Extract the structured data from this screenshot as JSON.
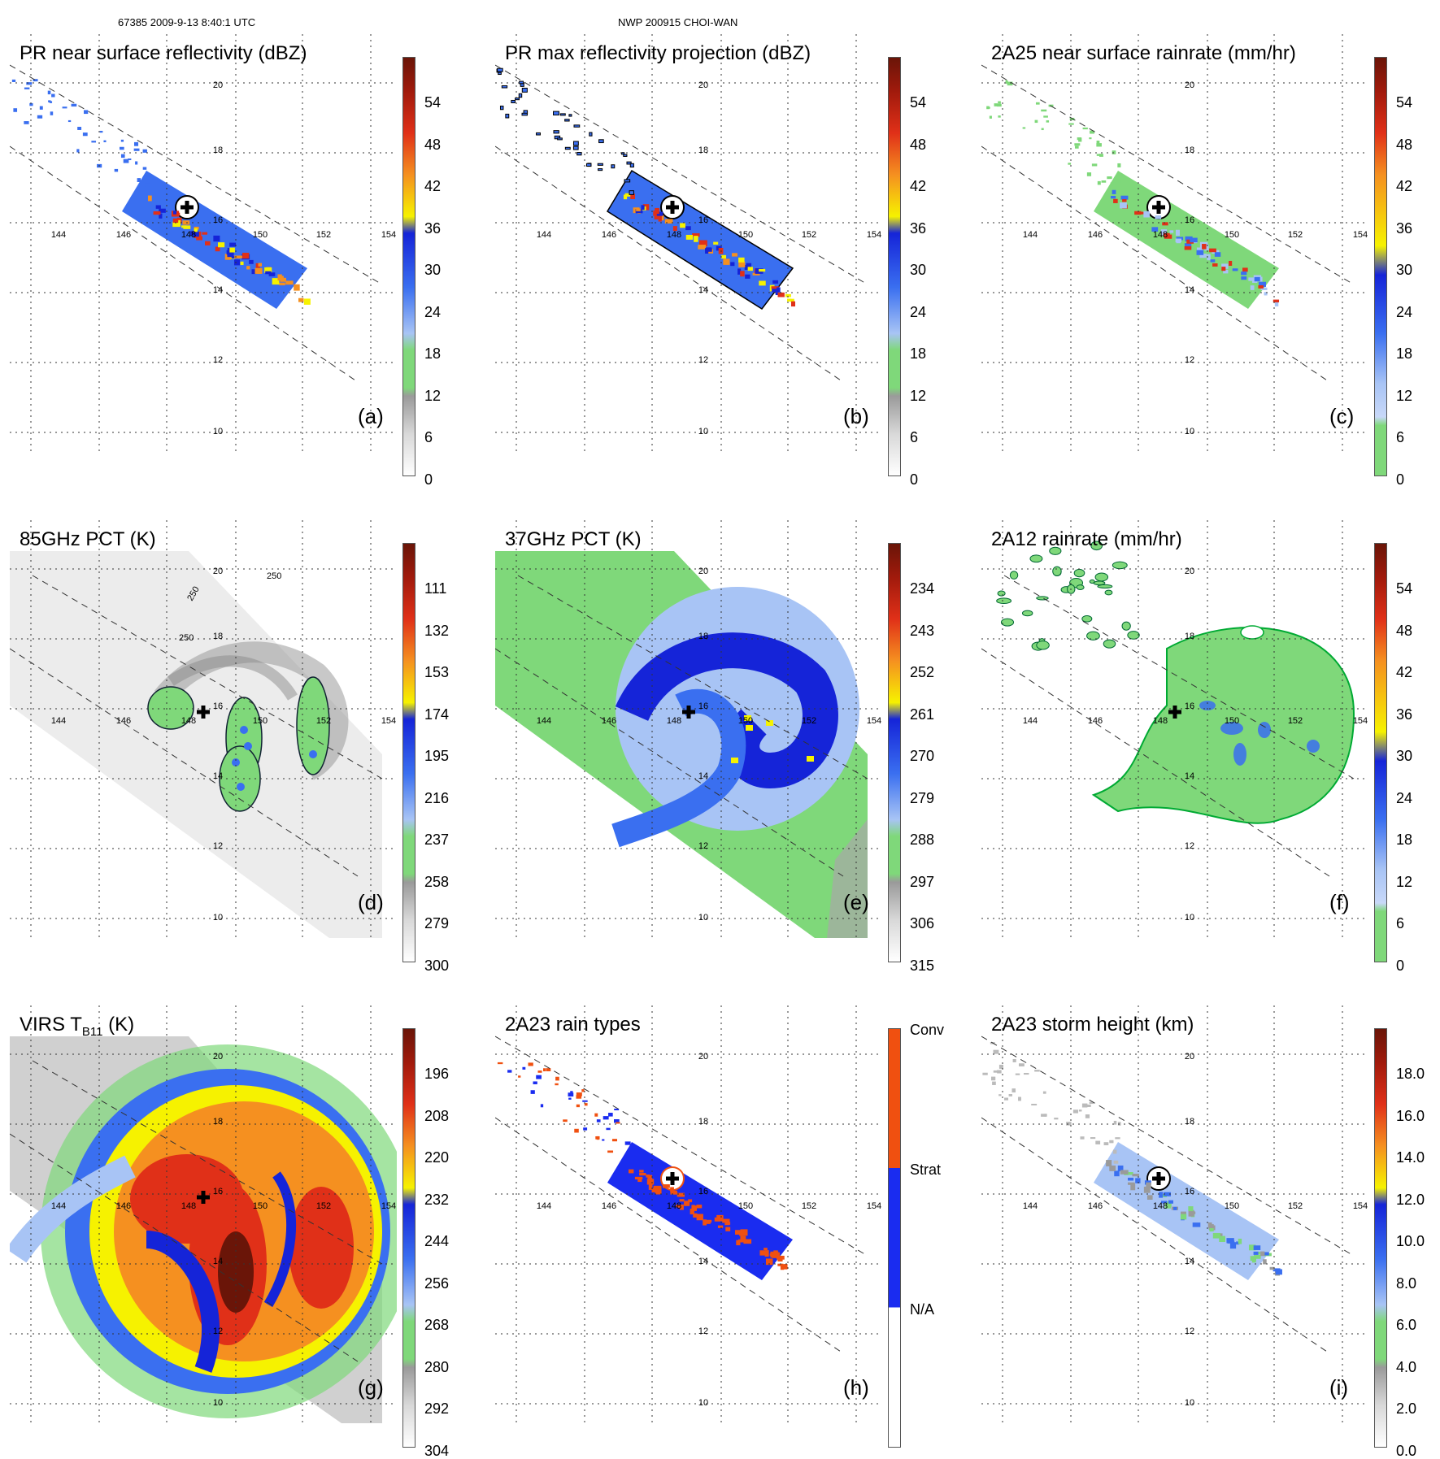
{
  "header": {
    "orbit_info": "67385 2009-9-13 8:40:1 UTC",
    "storm_info": "NWP 200915 CHOI-WAN"
  },
  "colors": {
    "green": "#7fd87a",
    "blue_dark": "#1524d8",
    "blue_mid": "#3a6ff0",
    "blue_light": "#a8c4f5",
    "yellow": "#f6f200",
    "orange": "#f59020",
    "red": "#e03018",
    "dark_red": "#6a1508",
    "gray": "#9a9a9a",
    "strat_blue": "#1a2cf0",
    "conv_orange": "#f05010"
  },
  "grid": {
    "lon_labels": [
      "144",
      "146",
      "148",
      "150",
      "152",
      "154"
    ],
    "lat_labels": [
      "10",
      "12",
      "14",
      "16",
      "18",
      "20"
    ]
  },
  "panels": [
    {
      "id": "a",
      "title": "PR near surface reflectivity (dBZ)",
      "label": "(a)",
      "ticks": [
        "54",
        "48",
        "42",
        "36",
        "30",
        "24",
        "18",
        "12",
        "6",
        "0"
      ],
      "type": "pr_swath"
    },
    {
      "id": "b",
      "title": "PR max reflectivity projection (dBZ)",
      "label": "(b)",
      "ticks": [
        "54",
        "48",
        "42",
        "36",
        "30",
        "24",
        "18",
        "12",
        "6",
        "0"
      ],
      "type": "pr_swath"
    },
    {
      "id": "c",
      "title": "2A25 near surface rainrate (mm/hr)",
      "label": "(c)",
      "ticks": [
        "54",
        "48",
        "42",
        "36",
        "30",
        "24",
        "18",
        "12",
        "6",
        "0"
      ],
      "type": "pr_swath_rain"
    },
    {
      "id": "d",
      "title": "85GHz PCT (K)",
      "label": "(d)",
      "ticks": [
        "111",
        "132",
        "153",
        "174",
        "195",
        "216",
        "237",
        "258",
        "279",
        "300"
      ],
      "type": "tmi_gray",
      "contour_labels": [
        "250",
        "250",
        "250"
      ]
    },
    {
      "id": "e",
      "title": "37GHz PCT (K)",
      "label": "(e)",
      "ticks": [
        "234",
        "243",
        "252",
        "261",
        "270",
        "279",
        "288",
        "297",
        "306",
        "315"
      ],
      "type": "tmi_green"
    },
    {
      "id": "f",
      "title": "2A12 rainrate (mm/hr)",
      "label": "(f)",
      "ticks": [
        "54",
        "48",
        "42",
        "36",
        "30",
        "24",
        "18",
        "12",
        "6",
        "0"
      ],
      "type": "tmi_rain"
    },
    {
      "id": "g",
      "title_main": "VIRS T",
      "title_sub": "B11",
      "title_unit": " (K)",
      "label": "(g)",
      "ticks": [
        "196",
        "208",
        "220",
        "232",
        "244",
        "256",
        "268",
        "280",
        "292",
        "304"
      ],
      "type": "virs"
    },
    {
      "id": "h",
      "title": "2A23 rain types",
      "label": "(h)",
      "ticks3": [
        "Conv",
        "Strat",
        "N/A"
      ],
      "type": "raintype"
    },
    {
      "id": "i",
      "title": "2A23 storm height (km)",
      "label": "(i)",
      "ticks": [
        "18.0",
        "16.0",
        "14.0",
        "12.0",
        "10.0",
        "8.0",
        "6.0",
        "4.0",
        "2.0",
        "0.0"
      ],
      "type": "height"
    }
  ]
}
